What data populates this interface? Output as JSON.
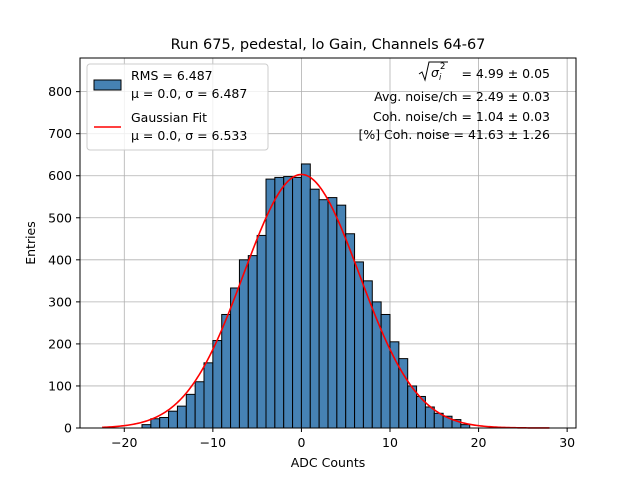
{
  "chart_data": {
    "type": "bar",
    "title": "Run 675, pedestal, lo Gain, Channels 64-67",
    "xlabel": "ADC Counts",
    "ylabel": "Entries",
    "xlim": [
      -25,
      31
    ],
    "ylim": [
      0,
      880
    ],
    "xticks": [
      -20,
      -10,
      0,
      10,
      20,
      30
    ],
    "yticks": [
      0,
      100,
      200,
      300,
      400,
      500,
      600,
      700,
      800
    ],
    "grid": true,
    "legend_position": "top-left",
    "histogram": {
      "name": "RMS = 6.487",
      "stats_label": "μ = 0.0, σ = 6.487",
      "color": "#4682b4",
      "edge_color": "#000000",
      "bins": [
        {
          "x0": -18,
          "x1": -17,
          "count": 8
        },
        {
          "x0": -17,
          "x1": -16,
          "count": 22
        },
        {
          "x0": -16,
          "x1": -15,
          "count": 25
        },
        {
          "x0": -15,
          "x1": -14,
          "count": 40
        },
        {
          "x0": -14,
          "x1": -13,
          "count": 52
        },
        {
          "x0": -13,
          "x1": -12,
          "count": 80
        },
        {
          "x0": -12,
          "x1": -11,
          "count": 110
        },
        {
          "x0": -11,
          "x1": -10,
          "count": 155
        },
        {
          "x0": -10,
          "x1": -9,
          "count": 208
        },
        {
          "x0": -9,
          "x1": -8,
          "count": 270
        },
        {
          "x0": -8,
          "x1": -7,
          "count": 333
        },
        {
          "x0": -7,
          "x1": -6,
          "count": 400
        },
        {
          "x0": -6,
          "x1": -5,
          "count": 410
        },
        {
          "x0": -5,
          "x1": -4,
          "count": 458
        },
        {
          "x0": -4,
          "x1": -3,
          "count": 592
        },
        {
          "x0": -3,
          "x1": -2,
          "count": 596
        },
        {
          "x0": -2,
          "x1": -1,
          "count": 598
        },
        {
          "x0": -1,
          "x1": 0,
          "count": 596
        },
        {
          "x0": 0,
          "x1": 1,
          "count": 628
        },
        {
          "x0": 1,
          "x1": 2,
          "count": 568
        },
        {
          "x0": 2,
          "x1": 3,
          "count": 543
        },
        {
          "x0": 3,
          "x1": 4,
          "count": 548
        },
        {
          "x0": 4,
          "x1": 5,
          "count": 530
        },
        {
          "x0": 5,
          "x1": 6,
          "count": 462
        },
        {
          "x0": 6,
          "x1": 7,
          "count": 395
        },
        {
          "x0": 7,
          "x1": 8,
          "count": 350
        },
        {
          "x0": 8,
          "x1": 9,
          "count": 300
        },
        {
          "x0": 9,
          "x1": 10,
          "count": 270
        },
        {
          "x0": 10,
          "x1": 11,
          "count": 205
        },
        {
          "x0": 11,
          "x1": 12,
          "count": 165
        },
        {
          "x0": 12,
          "x1": 13,
          "count": 100
        },
        {
          "x0": 13,
          "x1": 14,
          "count": 75
        },
        {
          "x0": 14,
          "x1": 15,
          "count": 50
        },
        {
          "x0": 15,
          "x1": 16,
          "count": 35
        },
        {
          "x0": 16,
          "x1": 17,
          "count": 28
        },
        {
          "x0": 17,
          "x1": 18,
          "count": 20
        },
        {
          "x0": 18,
          "x1": 19,
          "count": 8
        }
      ]
    },
    "fit": {
      "name": "Gaussian Fit",
      "stats_label": "μ = 0.0, σ = 6.533",
      "color": "#ff0000",
      "mu": 0.0,
      "sigma": 6.533,
      "amplitude": 603,
      "x_range": [
        -22.5,
        28
      ]
    },
    "annotations": {
      "sqrt_label_value": " = 4.99 ± 0.05",
      "lines": [
        "Avg. noise/ch = 2.49 ± 0.03",
        "Coh. noise/ch = 1.04 ± 0.03",
        "[%] Coh. noise = 41.63 ± 1.26"
      ]
    }
  }
}
